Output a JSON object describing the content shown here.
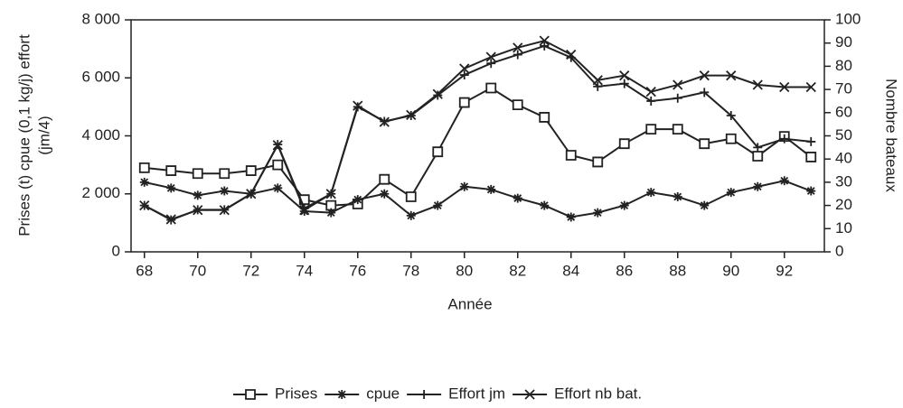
{
  "chart_data": {
    "type": "line",
    "y_label": [
      "Prises (t) cpue (0,1 kg/j) effort",
      "(jm/4)"
    ],
    "y2_label": "Nombre bateaux",
    "x_label": "Année",
    "x": [
      68,
      69,
      70,
      71,
      72,
      73,
      74,
      75,
      76,
      77,
      78,
      79,
      80,
      81,
      82,
      83,
      84,
      85,
      86,
      87,
      88,
      89,
      90,
      91,
      92,
      93
    ],
    "xlim": [
      67.5,
      93.5
    ],
    "xticks": [
      68,
      70,
      72,
      74,
      76,
      78,
      80,
      82,
      84,
      86,
      88,
      90,
      92
    ],
    "ylim": [
      0,
      8000
    ],
    "yticks": [
      0,
      {
        "value": 2000,
        "label": "2 000"
      },
      {
        "value": 4000,
        "label": "4 000"
      },
      {
        "value": 6000,
        "label": "6 000"
      },
      {
        "value": 8000,
        "label": "8 000"
      }
    ],
    "y2lim": [
      0,
      100
    ],
    "y2ticks": [
      0,
      10,
      20,
      30,
      40,
      50,
      60,
      70,
      80,
      90,
      100
    ],
    "series": [
      {
        "name": "Prises",
        "color": "#222",
        "marker": "square",
        "values": [
          2900,
          2800,
          2700,
          2700,
          2800,
          3000,
          1800,
          1600,
          1650,
          2500,
          1900,
          3450,
          5150,
          5650,
          5070,
          4640,
          3330,
          3100,
          3730,
          4230,
          4230,
          3730,
          3900,
          3300,
          3980,
          3270
        ]
      },
      {
        "name": "cpue",
        "color": "#222",
        "marker": "asterisk",
        "values": [
          2400,
          2200,
          1950,
          2100,
          2000,
          2200,
          1400,
          1350,
          1800,
          2000,
          1250,
          1600,
          2250,
          2150,
          1850,
          1600,
          1200,
          1350,
          1600,
          2050,
          1900,
          1600,
          2050,
          2250,
          2450,
          2100
        ]
      },
      {
        "name": "Effort jm",
        "color": "#222",
        "marker": "plus",
        "values": [
          1600,
          1100,
          1450,
          1450,
          2000,
          3700,
          1500,
          2000,
          5000,
          4500,
          4700,
          5400,
          6100,
          6500,
          6800,
          7100,
          6700,
          5700,
          5800,
          5200,
          5300,
          5500,
          4700,
          3600,
          3900,
          3800
        ]
      },
      {
        "name": "Effort nb bat.",
        "color": "#222",
        "marker": "cross",
        "axis": "y2",
        "values": [
          20,
          14,
          18,
          18,
          25,
          46,
          18,
          25,
          63,
          56,
          59,
          68,
          79,
          84,
          88,
          91,
          85,
          74,
          76,
          69,
          72,
          76,
          76,
          72,
          71,
          71
        ]
      }
    ]
  }
}
